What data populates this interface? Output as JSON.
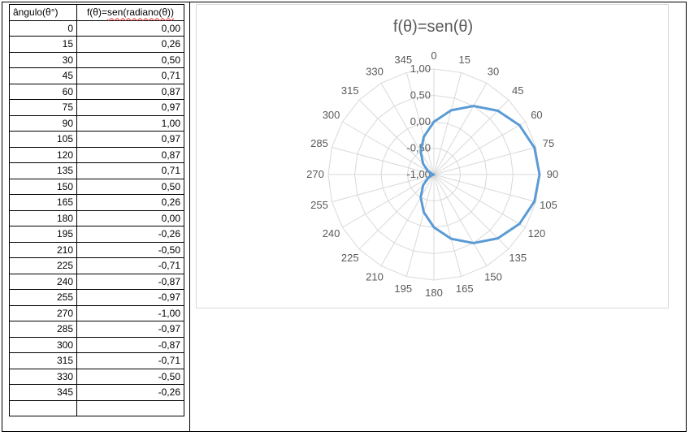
{
  "table": {
    "header_angle": "ângulo(θ°)",
    "header_func_prefix": "f(θ)=",
    "header_func_marked": "sen(radiano(θ))",
    "rows": [
      {
        "angle": "0",
        "value": "0,00"
      },
      {
        "angle": "15",
        "value": "0,26"
      },
      {
        "angle": "30",
        "value": "0,50"
      },
      {
        "angle": "45",
        "value": "0,71"
      },
      {
        "angle": "60",
        "value": "0,87"
      },
      {
        "angle": "75",
        "value": "0,97"
      },
      {
        "angle": "90",
        "value": "1,00"
      },
      {
        "angle": "105",
        "value": "0,97"
      },
      {
        "angle": "120",
        "value": "0,87"
      },
      {
        "angle": "135",
        "value": "0,71"
      },
      {
        "angle": "150",
        "value": "0,50"
      },
      {
        "angle": "165",
        "value": "0,26"
      },
      {
        "angle": "180",
        "value": "0,00"
      },
      {
        "angle": "195",
        "value": "-0,26"
      },
      {
        "angle": "210",
        "value": "-0,50"
      },
      {
        "angle": "225",
        "value": "-0,71"
      },
      {
        "angle": "240",
        "value": "-0,87"
      },
      {
        "angle": "255",
        "value": "-0,97"
      },
      {
        "angle": "270",
        "value": "-1,00"
      },
      {
        "angle": "285",
        "value": "-0,97"
      },
      {
        "angle": "300",
        "value": "-0,87"
      },
      {
        "angle": "315",
        "value": "-0,71"
      },
      {
        "angle": "330",
        "value": "-0,50"
      },
      {
        "angle": "345",
        "value": "-0,26"
      }
    ]
  },
  "chart_data": {
    "type": "radar",
    "title": "f(θ)=sen(θ)",
    "categories": [
      "0",
      "15",
      "30",
      "45",
      "60",
      "75",
      "90",
      "105",
      "120",
      "135",
      "150",
      "165",
      "180",
      "195",
      "210",
      "225",
      "240",
      "255",
      "270",
      "285",
      "300",
      "315",
      "330",
      "345"
    ],
    "series": [
      {
        "values": [
          0.0,
          0.26,
          0.5,
          0.71,
          0.87,
          0.97,
          1.0,
          0.97,
          0.87,
          0.71,
          0.5,
          0.26,
          0.0,
          -0.26,
          -0.5,
          -0.71,
          -0.87,
          -0.97,
          -1.0,
          -0.97,
          -0.87,
          -0.71,
          -0.5,
          -0.26
        ],
        "color": "#5b9bd5"
      }
    ],
    "r_range": [
      -1,
      1
    ],
    "r_ticks": [
      "-1,00",
      "-0,50",
      "0,00",
      "0,50",
      "1,00"
    ],
    "r_tick_values": [
      -1,
      -0.5,
      0,
      0.5,
      1
    ],
    "grid": true,
    "grid_color": "#d9d9d9",
    "label_color": "#595959"
  }
}
